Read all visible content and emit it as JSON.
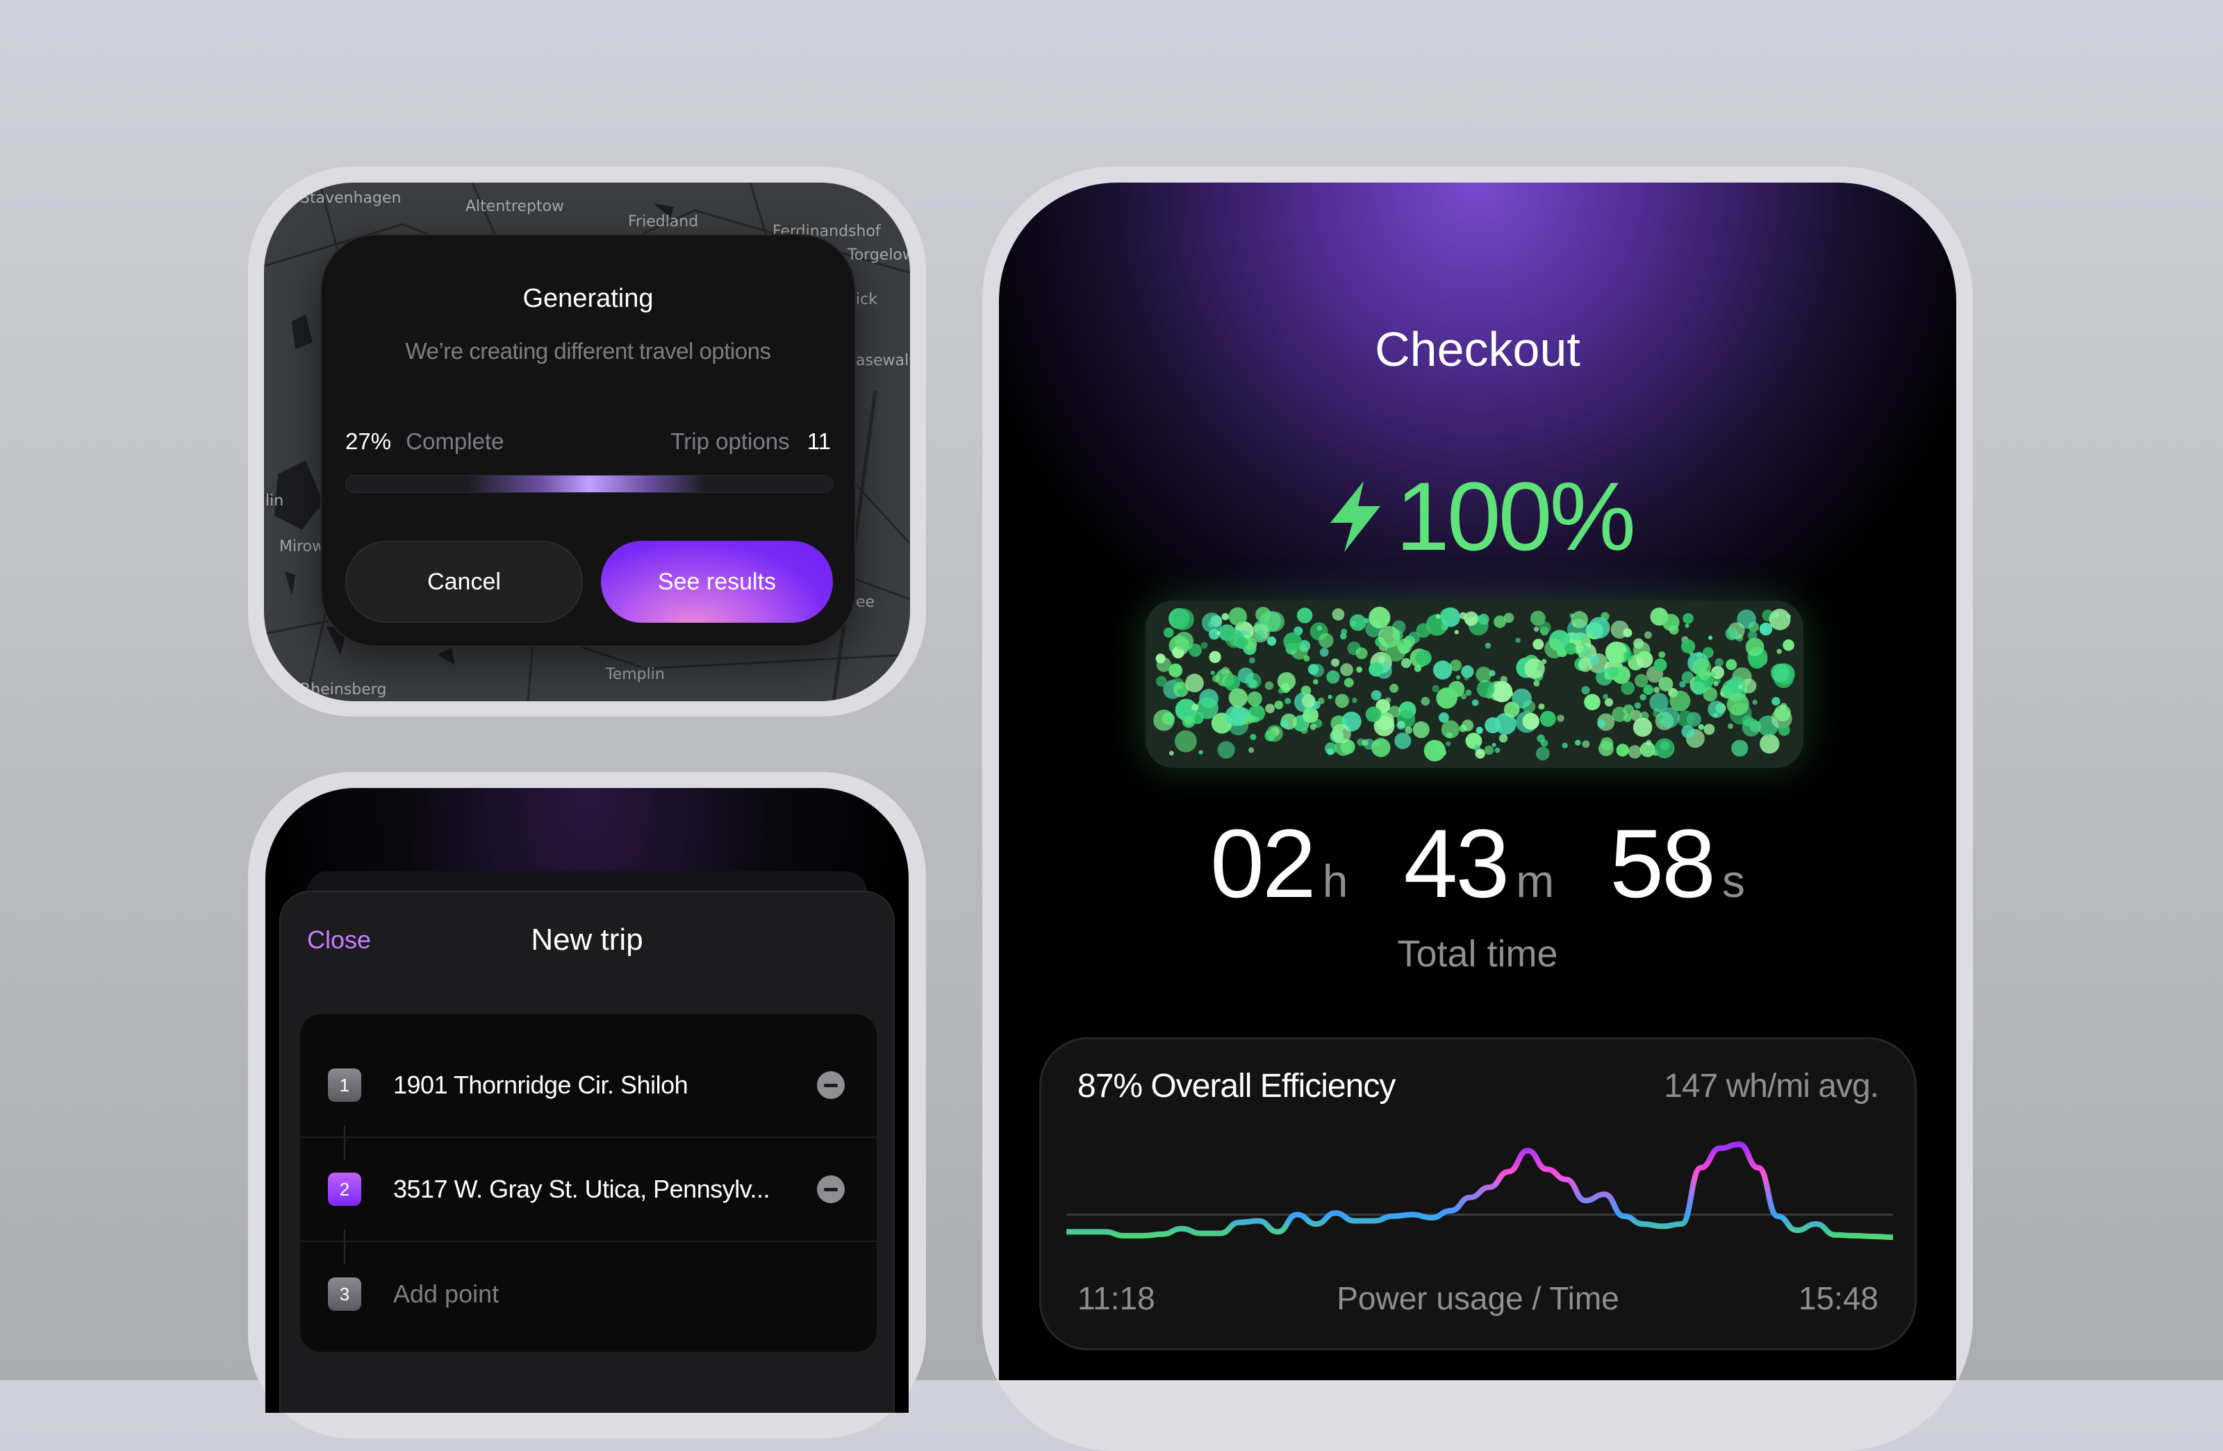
{
  "generating_card": {
    "map_labels": [
      "Stavenhagen",
      "Altentreptow",
      "Friedland",
      "Ferdinandshof",
      "Torgelow",
      "ick",
      "asewalk",
      "lin",
      "Mirow",
      "ee",
      "Templin",
      "Rheinsberg"
    ],
    "title": "Generating",
    "subtitle": "We’re creating different travel options",
    "progress_percent_label": "27%",
    "progress_label": "Complete",
    "progress_value": 27,
    "trip_options_label": "Trip options",
    "trip_options_count": "11",
    "cancel_label": "Cancel",
    "see_results_label": "See results",
    "accent": "#7b2ff7"
  },
  "new_trip": {
    "close_label": "Close",
    "title": "New trip",
    "points": [
      {
        "index": "1",
        "label": "1901 Thornridge Cir. Shiloh",
        "removable": true
      },
      {
        "index": "2",
        "label": "3517 W. Gray St. Utica, Pennsylv...",
        "removable": true
      },
      {
        "index": "3",
        "label": "Add point",
        "removable": false
      }
    ],
    "close_color": "#c77dff"
  },
  "checkout": {
    "title": "Checkout",
    "battery_percent": "100%",
    "battery_icon": "lightning-bolt-icon",
    "battery_color": "#5ee37a",
    "timer": {
      "hours": "02",
      "h": "h",
      "minutes": "43",
      "m": "m",
      "seconds": "58",
      "s": "s"
    },
    "timer_label": "Total time",
    "efficiency_label": "87% Overall Efficiency",
    "avg_label": "147 wh/mi avg."
  },
  "chart_data": {
    "type": "line",
    "xlabel": "Power usage / Time",
    "x_start": "11:18",
    "x_end": "15:48",
    "values": [
      0.38,
      0.38,
      0.38,
      0.33,
      0.33,
      0.35,
      0.42,
      0.36,
      0.36,
      0.5,
      0.52,
      0.38,
      0.6,
      0.48,
      0.62,
      0.52,
      0.52,
      0.58,
      0.6,
      0.56,
      0.65,
      0.82,
      0.95,
      1.15,
      1.42,
      1.18,
      1.05,
      0.78,
      0.86,
      0.58,
      0.48,
      0.45,
      0.48,
      1.2,
      1.45,
      1.5,
      1.2,
      0.58,
      0.4,
      0.48,
      0.34,
      0.33,
      0.32,
      0.31
    ],
    "reference_line": 0.6,
    "gradient_colors": [
      "#4fd96b",
      "#3aa0ff",
      "#ff4fd8",
      "#9b30ff"
    ]
  }
}
